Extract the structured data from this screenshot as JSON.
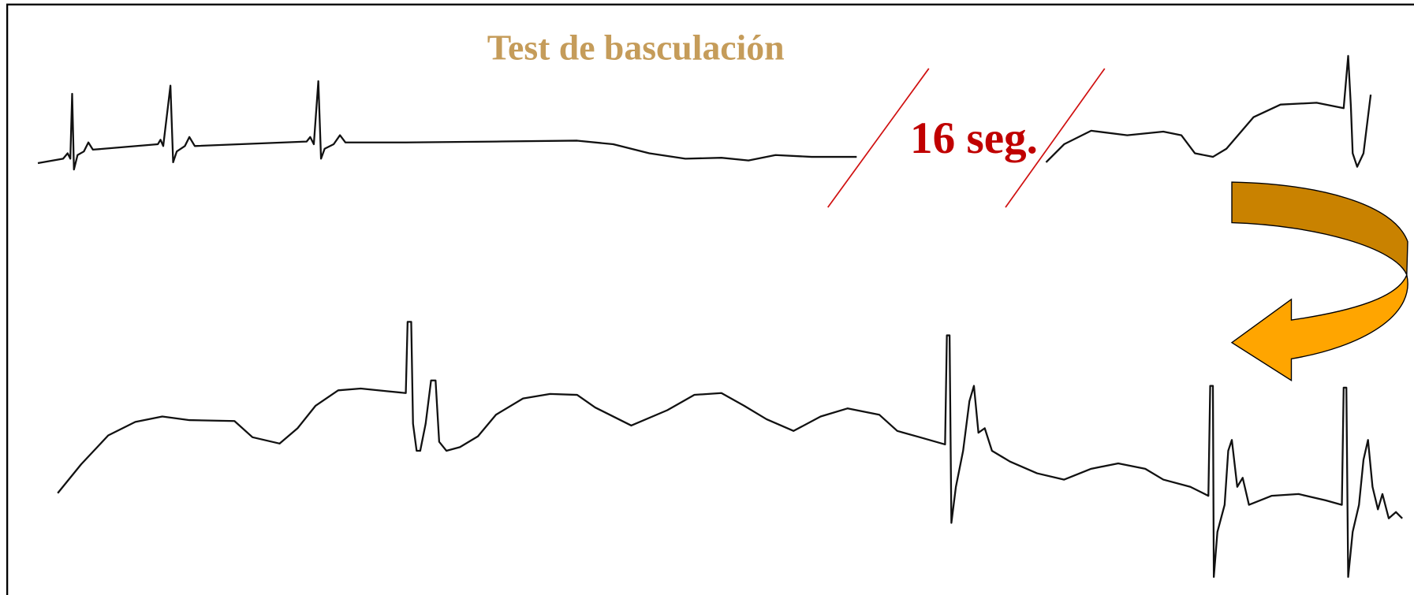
{
  "title": "Test de basculación",
  "annotation": "16 seg."
}
